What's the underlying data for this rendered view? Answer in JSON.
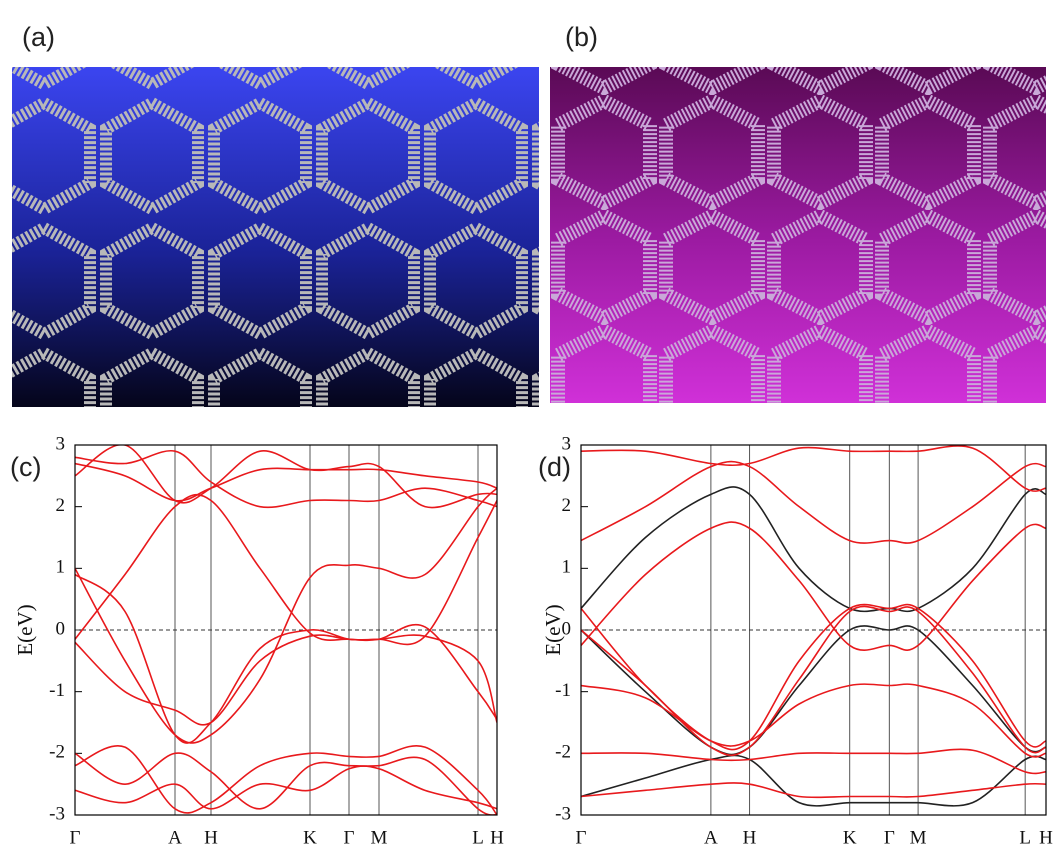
{
  "panels": [
    {
      "label": "(a)"
    },
    {
      "label": "(b)"
    }
  ],
  "chart_data": [
    {
      "type": "line",
      "panel_label": "(c)",
      "y_label": "E(eV)",
      "xlim": [
        0,
        4.22
      ],
      "ylim": [
        -3,
        3
      ],
      "yticks": [
        -3,
        -2,
        -1,
        0,
        1,
        2,
        3
      ],
      "reference_line": 0,
      "xticks": [
        {
          "value": 0,
          "label": "Γ"
        },
        {
          "value": 1.0,
          "label": "A"
        },
        {
          "value": 1.36,
          "label": "H"
        },
        {
          "value": 2.35,
          "label": "K"
        },
        {
          "value": 2.74,
          "label": "Γ"
        },
        {
          "value": 3.04,
          "label": "M"
        },
        {
          "value": 4.03,
          "label": "L"
        },
        {
          "value": 4.22,
          "label": "H"
        }
      ],
      "x": [
        0,
        0.5,
        1.0,
        1.36,
        1.85,
        2.35,
        2.74,
        3.04,
        3.5,
        4.03,
        4.22
      ],
      "series": [
        {
          "color": "#e8191c",
          "values": [
            -0.15,
            0.9,
            2.0,
            2.1,
            1.0,
            -0.05,
            -0.15,
            -0.15,
            -0.1,
            1.5,
            2.1
          ]
        },
        {
          "color": "#e8191c",
          "values": [
            1.0,
            -0.5,
            -1.7,
            -1.7,
            -0.8,
            0.85,
            1.05,
            1.0,
            0.9,
            2.0,
            2.3
          ]
        },
        {
          "color": "#e8191c",
          "values": [
            -0.2,
            -1.0,
            -1.3,
            -1.5,
            -0.5,
            -0.1,
            -0.15,
            -0.15,
            0.05,
            -1.0,
            -1.45
          ]
        },
        {
          "color": "#e8191c",
          "values": [
            0.9,
            0.3,
            -1.7,
            -1.5,
            -0.3,
            0.0,
            -0.15,
            -0.15,
            -0.1,
            -0.5,
            -1.5
          ]
        },
        {
          "color": "#e8191c",
          "values": [
            2.7,
            2.5,
            2.1,
            2.3,
            2.6,
            2.6,
            2.6,
            2.6,
            2.5,
            2.4,
            2.3
          ]
        },
        {
          "color": "#e8191c",
          "values": [
            2.5,
            3.0,
            2.1,
            2.3,
            2.9,
            2.6,
            2.65,
            2.65,
            2.0,
            2.2,
            2.2
          ]
        },
        {
          "color": "#e8191c",
          "values": [
            2.8,
            2.7,
            2.9,
            2.4,
            2.0,
            2.1,
            2.1,
            2.1,
            2.3,
            2.1,
            2.0
          ]
        },
        {
          "color": "#e8191c",
          "values": [
            -2.0,
            -2.5,
            -2.0,
            -2.3,
            -2.9,
            -2.2,
            -2.2,
            -2.2,
            -2.1,
            -2.9,
            -3.0
          ]
        },
        {
          "color": "#e8191c",
          "values": [
            -2.2,
            -1.9,
            -2.9,
            -2.8,
            -2.2,
            -2.0,
            -2.05,
            -2.05,
            -1.9,
            -2.6,
            -3.0
          ]
        },
        {
          "color": "#e8191c",
          "values": [
            -2.6,
            -2.8,
            -2.5,
            -2.9,
            -2.5,
            -2.6,
            -2.25,
            -2.25,
            -2.6,
            -2.8,
            -2.9
          ]
        }
      ]
    },
    {
      "type": "line",
      "panel_label": "(d)",
      "y_label": "E(eV)",
      "xlim": [
        0,
        4.69
      ],
      "ylim": [
        -3,
        3
      ],
      "yticks": [
        -3,
        -2,
        -1,
        0,
        1,
        2,
        3
      ],
      "reference_line": 0,
      "xticks": [
        {
          "value": 0,
          "label": "Γ"
        },
        {
          "value": 1.31,
          "label": "A"
        },
        {
          "value": 1.7,
          "label": "H"
        },
        {
          "value": 2.71,
          "label": "K"
        },
        {
          "value": 3.11,
          "label": "Γ"
        },
        {
          "value": 3.4,
          "label": "M"
        },
        {
          "value": 4.48,
          "label": "L"
        },
        {
          "value": 4.69,
          "label": "H"
        }
      ],
      "x": [
        0,
        0.65,
        1.31,
        1.7,
        2.2,
        2.71,
        3.11,
        3.4,
        3.95,
        4.48,
        4.69
      ],
      "series": [
        {
          "color": "#222222",
          "values": [
            0.35,
            1.5,
            2.2,
            2.2,
            1.0,
            0.35,
            0.35,
            0.35,
            1.0,
            2.2,
            2.2
          ]
        },
        {
          "color": "#222222",
          "values": [
            0.0,
            -1.0,
            -1.9,
            -1.9,
            -0.9,
            0.0,
            0.0,
            0.0,
            -0.9,
            -1.9,
            -1.9
          ]
        },
        {
          "color": "#222222",
          "values": [
            -2.7,
            -2.4,
            -2.1,
            -2.1,
            -2.8,
            -2.8,
            -2.8,
            -2.8,
            -2.8,
            -2.1,
            -2.1
          ]
        },
        {
          "color": "#e8191c",
          "values": [
            2.9,
            2.9,
            2.7,
            2.7,
            2.95,
            2.9,
            2.9,
            2.9,
            2.95,
            2.3,
            2.3
          ]
        },
        {
          "color": "#e8191c",
          "values": [
            1.45,
            2.0,
            2.65,
            2.65,
            2.0,
            1.45,
            1.45,
            1.45,
            2.0,
            2.65,
            2.65
          ]
        },
        {
          "color": "#e8191c",
          "values": [
            0.35,
            -0.9,
            -1.8,
            -1.8,
            -0.5,
            0.35,
            0.35,
            0.35,
            -0.5,
            -1.8,
            -1.8
          ]
        },
        {
          "color": "#e8191c",
          "values": [
            -0.25,
            0.9,
            1.65,
            1.65,
            0.8,
            -0.25,
            -0.25,
            -0.25,
            0.8,
            1.65,
            1.65
          ]
        },
        {
          "color": "#e8191c",
          "values": [
            0.0,
            -0.9,
            -1.9,
            -1.9,
            -0.8,
            0.3,
            0.3,
            0.3,
            -0.7,
            -1.9,
            -1.9
          ]
        },
        {
          "color": "#e8191c",
          "values": [
            -0.9,
            -1.1,
            -1.8,
            -1.8,
            -1.2,
            -0.9,
            -0.9,
            -0.9,
            -1.2,
            -2.0,
            -2.0
          ]
        },
        {
          "color": "#e8191c",
          "values": [
            -2.0,
            -2.0,
            -2.1,
            -2.1,
            -2.0,
            -2.0,
            -2.0,
            -2.0,
            -1.95,
            -2.3,
            -2.3
          ]
        },
        {
          "color": "#e8191c",
          "values": [
            -2.7,
            -2.6,
            -2.5,
            -2.5,
            -2.7,
            -2.7,
            -2.7,
            -2.7,
            -2.6,
            -2.5,
            -2.5
          ]
        }
      ]
    }
  ]
}
